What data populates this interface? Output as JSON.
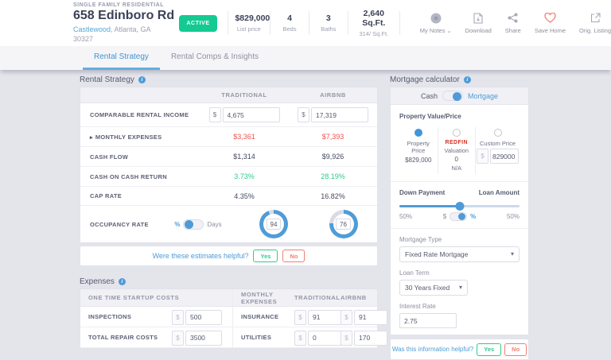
{
  "colors": {
    "accent_blue": "#4e9bd7",
    "positive_green": "#2ecc8e",
    "negative_red": "#f0544f",
    "badge_green": "#14ca92",
    "heart_coral": "#f0806f",
    "redfin_red": "#d93025",
    "donut_blue": "#4f9cd8",
    "donut_gray": "#d9dbe4"
  },
  "header": {
    "property_type": "SINGLE FAMILY RESIDENTIAL",
    "address": "658 Edinboro Rd",
    "neighborhood": "Castlewood",
    "location_rest": ", Atlanta, GA 30327",
    "status": "ACTIVE",
    "price": "$829,000",
    "price_label": "List price",
    "stats": [
      {
        "value": "4",
        "label": "Beds"
      },
      {
        "value": "3",
        "label": "Baths"
      },
      {
        "value": "2,640 Sq.Ft.",
        "label": "314/ Sq.Ft."
      }
    ],
    "actions": [
      {
        "label": "My Notes"
      },
      {
        "label": "Download"
      },
      {
        "label": "Share"
      },
      {
        "label": "Save Home"
      },
      {
        "label": "Orig. Listing"
      }
    ]
  },
  "tabs": [
    {
      "label": "Rental Strategy"
    },
    {
      "label": "Rental Comps & Insights"
    }
  ],
  "rental_strategy": {
    "title": "Rental Strategy",
    "columns": [
      "TRADITIONAL",
      "AIRBNB"
    ],
    "income_row": {
      "label": "COMPARABLE RENTAL INCOME",
      "currency": "$",
      "traditional": "4,675",
      "airbnb": "17,319"
    },
    "rows": [
      {
        "label": "MONTHLY EXPENSES",
        "traditional": "$3,361",
        "airbnb": "$7,393"
      },
      {
        "label": "CASH FLOW",
        "traditional": "$1,314",
        "airbnb": "$9,926"
      },
      {
        "label": "CASH ON CASH RETURN",
        "traditional": "3.73%",
        "airbnb": "28.19%"
      },
      {
        "label": "CAP RATE",
        "traditional": "4.35%",
        "airbnb": "16.82%"
      }
    ],
    "occupancy": {
      "label": "OCCUPANCY RATE",
      "unit_percent": "%",
      "unit_days": "Days",
      "traditional": 94,
      "airbnb": 76
    },
    "feedback": {
      "question": "Were these estimates helpful?",
      "yes": "Yes",
      "no": "No"
    }
  },
  "expenses": {
    "title": "Expenses",
    "headers": {
      "left": "ONE TIME STARTUP COSTS",
      "middle": "MONTHLY EXPENSES",
      "traditional": "TRADITIONAL",
      "airbnb": "AIRBNB"
    },
    "currency": "$",
    "rows": [
      {
        "startup_label": "INSPECTIONS",
        "startup_value": "500",
        "monthly_label": "INSURANCE",
        "traditional": "91",
        "airbnb": "91"
      },
      {
        "startup_label": "TOTAL REPAIR COSTS",
        "startup_value": "3500",
        "monthly_label": "UTILITIES",
        "traditional": "0",
        "airbnb": "170"
      }
    ]
  },
  "mortgage": {
    "title": "Mortgage calculator",
    "payment_toggle": {
      "left": "Cash",
      "right": "Mortgage"
    },
    "property_value_label": "Property Value/Price",
    "options": [
      {
        "label": "Property Price",
        "value": "$829,000"
      },
      {
        "brand": "REDFIN",
        "label": "Valuation",
        "value": "0",
        "note": "N/A"
      },
      {
        "label": "Custom Price",
        "currency": "$",
        "input": "829000"
      }
    ],
    "down_payment": {
      "left_label": "Down Payment",
      "right_label": "Loan Amount",
      "left_value": "50%",
      "right_value": "50%",
      "unit_dollar": "$",
      "unit_percent": "%",
      "slider_percent": 50
    },
    "mortgage_type": {
      "label": "Mortgage Type",
      "value": "Fixed Rate Mortgage"
    },
    "loan_term": {
      "label": "Loan Term",
      "value": "30 Years Fixed"
    },
    "interest_rate": {
      "label": "Interest Rate",
      "value": "2.75"
    },
    "feedback": {
      "question": "Was this information helpful?",
      "yes": "Yes",
      "no": "No"
    }
  },
  "icons": {
    "expand_caret": "▸",
    "dropdown_caret": "▾",
    "chevron_down": "⌄",
    "info": "i"
  }
}
